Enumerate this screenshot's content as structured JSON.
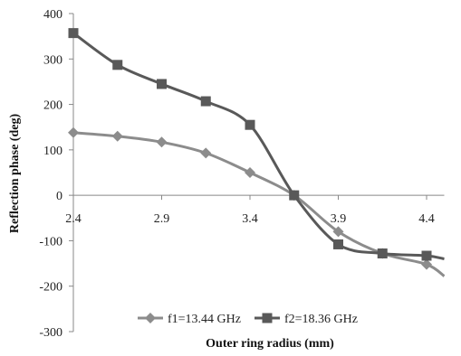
{
  "chart_data": {
    "type": "line",
    "title": "",
    "xlabel": "Outer ring radius (mm)",
    "ylabel": "Reflection phase (deg)",
    "xlim": [
      2.4,
      4.5
    ],
    "ylim": [
      -300,
      400
    ],
    "xticks": [
      "2.4",
      "2.9",
      "3.4",
      "3.9",
      "4.4"
    ],
    "xtick_values": [
      2.4,
      2.9,
      3.4,
      3.9,
      4.4
    ],
    "yticks": [
      "400",
      "300",
      "200",
      "100",
      "0",
      "-100",
      "-200",
      "-300"
    ],
    "ytick_values": [
      400,
      300,
      200,
      100,
      0,
      -100,
      -200,
      -300
    ],
    "grid": false,
    "legend_position": "bottom",
    "series": [
      {
        "name": "f1=13.44 GHz",
        "color": "#8c8c8c",
        "marker": "diamond",
        "x": [
          2.4,
          2.65,
          2.9,
          3.15,
          3.4,
          3.65,
          3.9,
          4.15,
          4.4,
          4.5
        ],
        "y": [
          138,
          130,
          117,
          93,
          50,
          0,
          -80,
          -128,
          -152,
          -178
        ],
        "marked": [
          true,
          true,
          true,
          true,
          true,
          true,
          true,
          true,
          true,
          false
        ]
      },
      {
        "name": "f2=18.36 GHz",
        "color": "#595959",
        "marker": "square",
        "x": [
          2.4,
          2.65,
          2.9,
          3.15,
          3.4,
          3.65,
          3.9,
          4.15,
          4.4,
          4.5
        ],
        "y": [
          357,
          287,
          245,
          207,
          155,
          0,
          -108,
          -128,
          -133,
          -140
        ],
        "marked": [
          true,
          true,
          true,
          true,
          true,
          true,
          true,
          true,
          true,
          false
        ]
      }
    ]
  }
}
